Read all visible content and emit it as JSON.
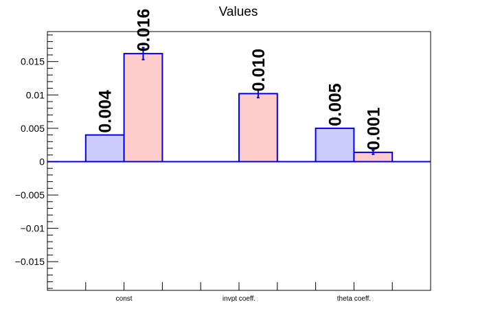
{
  "colors": {
    "background": "#ffffff",
    "axis": "#000000",
    "bar_outline": "#0000ee",
    "series_blue_fill": "#ccccff",
    "series_red_fill": "#ffcccc",
    "error_bar": "#0000ee",
    "zero_line": "#0000ee"
  },
  "chart_data": {
    "type": "bar",
    "title": "Values",
    "xlabel": "",
    "ylabel": "",
    "ylim": [
      -0.0193,
      0.0195
    ],
    "yticks": [
      {
        "value": 0.015,
        "label": "0.015"
      },
      {
        "value": 0.01,
        "label": "0.01"
      },
      {
        "value": 0.005,
        "label": "0.005"
      },
      {
        "value": 0,
        "label": "0"
      },
      {
        "value": -0.005,
        "label": "−0.005"
      },
      {
        "value": -0.01,
        "label": "−0.01"
      },
      {
        "value": -0.015,
        "label": "−0.015"
      }
    ],
    "categories": [
      "const",
      "invpt coeff.",
      "theta coeff."
    ],
    "grid": false,
    "legend": "none",
    "series": [
      {
        "color": "#ccccff",
        "values": [
          0.004,
          0.0,
          0.005
        ],
        "errors": [
          0,
          0,
          0
        ],
        "labels": [
          "0.004",
          "",
          "0.005"
        ]
      },
      {
        "color": "#ffcccc",
        "values": [
          0.0162,
          0.0102,
          0.0014
        ],
        "errors": [
          0.0009,
          0.0006,
          0.0003
        ],
        "labels": [
          "0.016",
          "0.010",
          "0.001"
        ]
      }
    ]
  }
}
